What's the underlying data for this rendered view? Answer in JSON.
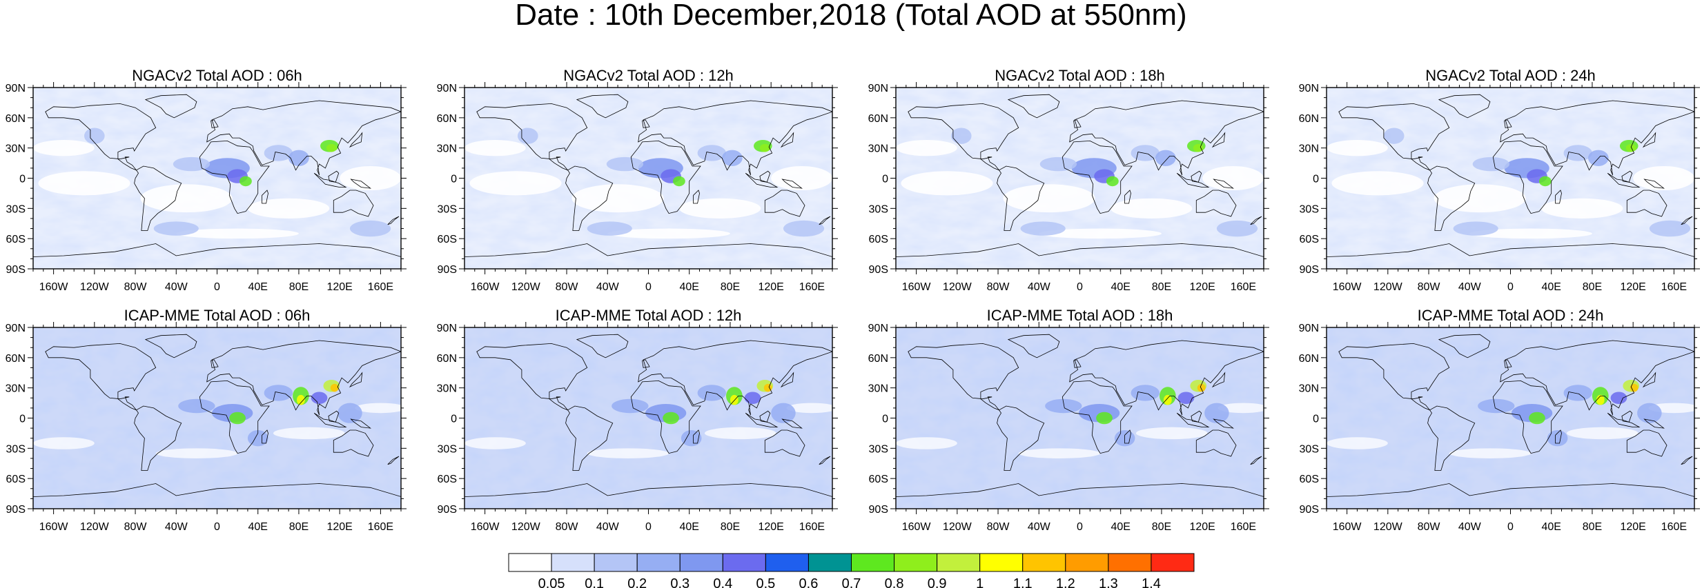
{
  "title": "Date : 10th December,2018 (Total AOD at 550nm)",
  "panels": [
    {
      "title": "NGACv2 Total AOD : 06h",
      "model": "NGACv2",
      "hour": "06h"
    },
    {
      "title": "NGACv2 Total AOD : 12h",
      "model": "NGACv2",
      "hour": "12h"
    },
    {
      "title": "NGACv2 Total AOD : 18h",
      "model": "NGACv2",
      "hour": "18h"
    },
    {
      "title": "NGACv2 Total AOD : 24h",
      "model": "NGACv2",
      "hour": "24h"
    },
    {
      "title": "ICAP-MME Total AOD : 06h",
      "model": "ICAP-MME",
      "hour": "06h"
    },
    {
      "title": "ICAP-MME Total AOD : 12h",
      "model": "ICAP-MME",
      "hour": "12h"
    },
    {
      "title": "ICAP-MME Total AOD : 18h",
      "model": "ICAP-MME",
      "hour": "18h"
    },
    {
      "title": "ICAP-MME Total AOD : 24h",
      "model": "ICAP-MME",
      "hour": "24h"
    }
  ],
  "lat_ticks": [
    "90N",
    "60N",
    "30N",
    "0",
    "30S",
    "60S",
    "90S"
  ],
  "lon_ticks": [
    "160W",
    "120W",
    "80W",
    "40W",
    "0",
    "40E",
    "80E",
    "120E",
    "160E"
  ],
  "lon_tick_values": [
    -160,
    -120,
    -80,
    -40,
    0,
    40,
    80,
    120,
    160
  ],
  "lat_tick_values": [
    90,
    60,
    30,
    0,
    -30,
    -60,
    -90
  ],
  "colorbar": {
    "labels": [
      "0.05",
      "0.1",
      "0.2",
      "0.3",
      "0.4",
      "0.5",
      "0.6",
      "0.7",
      "0.8",
      "0.9",
      "1",
      "1.1",
      "1.2",
      "1.3",
      "1.4"
    ],
    "colors": [
      "#ffffff",
      "#d6e0fb",
      "#b4c5f6",
      "#96aef3",
      "#7f98f0",
      "#6b6bef",
      "#1f5fee",
      "#009393",
      "#5ee81f",
      "#8fee1c",
      "#c2f03c",
      "#ffff00",
      "#ffc400",
      "#ff9c00",
      "#ff7000",
      "#ff2a14"
    ]
  }
}
